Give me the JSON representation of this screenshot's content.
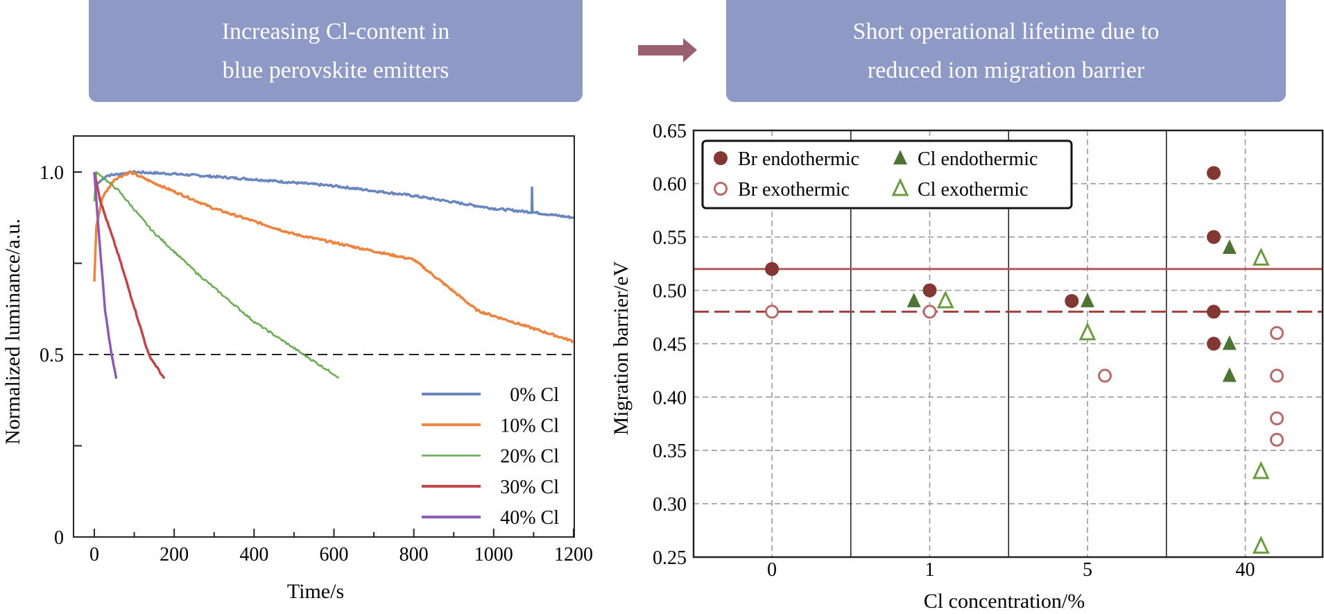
{
  "header": {
    "left_lines": [
      "Increasing Cl-content in",
      "blue perovskite emitters"
    ],
    "right_lines": [
      "Short operational lifetime due to",
      "reduced ion migration barrier"
    ],
    "box_color": "#8E99C6",
    "arrow_color": "#9A6070"
  },
  "chart_data": [
    {
      "type": "line",
      "title": "",
      "xlabel": "Time/s",
      "ylabel": "Normalized luminance/a.u.",
      "xlim": [
        -40,
        1200
      ],
      "ylim": [
        0,
        1.1
      ],
      "xticks": [
        0,
        200,
        400,
        600,
        800,
        1000,
        1200
      ],
      "xtick_labels": [
        "0",
        "200",
        "400",
        "600",
        "800",
        "1000",
        "1200"
      ],
      "yticks": [
        0,
        0.5,
        1.0
      ],
      "ytick_labels": [
        "0",
        "0.5",
        "1.0"
      ],
      "reference_line": 0.5,
      "legend_position": "bottom-right",
      "series": [
        {
          "name": "0% Cl",
          "color": "#6A86BE",
          "points": [
            [
              0,
              0.96
            ],
            [
              10,
              0.97
            ],
            [
              30,
              0.99
            ],
            [
              100,
              1.0
            ],
            [
              200,
              0.995
            ],
            [
              400,
              0.98
            ],
            [
              600,
              0.962
            ],
            [
              800,
              0.935
            ],
            [
              1000,
              0.9
            ],
            [
              1095,
              0.89
            ],
            [
              1096,
              0.96
            ],
            [
              1097,
              0.89
            ],
            [
              1200,
              0.875
            ]
          ]
        },
        {
          "name": "10% Cl",
          "color": "#EC8440",
          "points": [
            [
              0,
              0.7
            ],
            [
              5,
              0.85
            ],
            [
              20,
              0.93
            ],
            [
              50,
              0.98
            ],
            [
              90,
              1.0
            ],
            [
              150,
              0.97
            ],
            [
              300,
              0.9
            ],
            [
              500,
              0.83
            ],
            [
              800,
              0.76
            ],
            [
              960,
              0.62
            ],
            [
              1200,
              0.536
            ]
          ]
        },
        {
          "name": "20% Cl",
          "color": "#6AAA50",
          "points": [
            [
              0,
              0.92
            ],
            [
              5,
              1.0
            ],
            [
              60,
              0.95
            ],
            [
              144,
              0.84
            ],
            [
              260,
              0.72
            ],
            [
              400,
              0.59
            ],
            [
              524,
              0.5
            ],
            [
              613,
              0.437
            ]
          ]
        },
        {
          "name": "30% Cl",
          "color": "#C04448",
          "points": [
            [
              0,
              1.0
            ],
            [
              15,
              0.92
            ],
            [
              58,
              0.78
            ],
            [
              100,
              0.63
            ],
            [
              136,
              0.5
            ],
            [
              175,
              0.434
            ]
          ]
        },
        {
          "name": "40% Cl",
          "color": "#8A5AB6",
          "points": [
            [
              0,
              1.0
            ],
            [
              10,
              0.85
            ],
            [
              27,
              0.62
            ],
            [
              43,
              0.5
            ],
            [
              55,
              0.434
            ]
          ]
        }
      ]
    },
    {
      "type": "scatter",
      "title": "",
      "xlabel": "Cl concentration/%",
      "ylabel": "Migration barrier/eV",
      "categories": [
        "0",
        "1",
        "5",
        "40"
      ],
      "ylim": [
        0.25,
        0.65
      ],
      "yticks": [
        "0.25",
        "0.30",
        "0.35",
        "0.40",
        "0.45",
        "0.50",
        "0.55",
        "0.60",
        "0.65"
      ],
      "grid": true,
      "legend_position": "top-left",
      "reference_lines": [
        {
          "value": 0.52,
          "style": "solid",
          "color": "#B0585A"
        },
        {
          "value": 0.48,
          "style": "dashed",
          "color": "#A43C3A"
        }
      ],
      "series": [
        {
          "name": "Br endothermic",
          "marker": "filled-circle",
          "color": "#823733",
          "points": [
            [
              0,
              0.52,
              0
            ],
            [
              1,
              0.5,
              0
            ],
            [
              5,
              0.49,
              -0.1
            ],
            [
              40,
              0.61,
              -0.2
            ],
            [
              40,
              0.55,
              -0.2
            ],
            [
              40,
              0.48,
              -0.2
            ],
            [
              40,
              0.45,
              -0.2
            ]
          ]
        },
        {
          "name": "Cl endothermic",
          "marker": "filled-triangle",
          "color": "#4E7434",
          "points": [
            [
              1,
              0.49,
              -0.1
            ],
            [
              5,
              0.49,
              0
            ],
            [
              40,
              0.54,
              -0.1
            ],
            [
              40,
              0.45,
              -0.1
            ],
            [
              40,
              0.42,
              -0.1
            ]
          ]
        },
        {
          "name": "Br exothermic",
          "marker": "open-circle",
          "color": "#B86A6A",
          "points": [
            [
              0,
              0.48,
              0
            ],
            [
              1,
              0.48,
              0
            ],
            [
              5,
              0.42,
              0.11
            ],
            [
              40,
              0.46,
              0.2
            ],
            [
              40,
              0.42,
              0.2
            ],
            [
              40,
              0.38,
              0.2
            ],
            [
              40,
              0.36,
              0.2
            ]
          ]
        },
        {
          "name": "Cl exothermic",
          "marker": "open-triangle",
          "color": "#6A9A3E",
          "points": [
            [
              1,
              0.49,
              0.1
            ],
            [
              5,
              0.46,
              0
            ],
            [
              40,
              0.53,
              0.1
            ],
            [
              40,
              0.33,
              0.1
            ],
            [
              40,
              0.26,
              0.1
            ]
          ]
        }
      ]
    }
  ]
}
